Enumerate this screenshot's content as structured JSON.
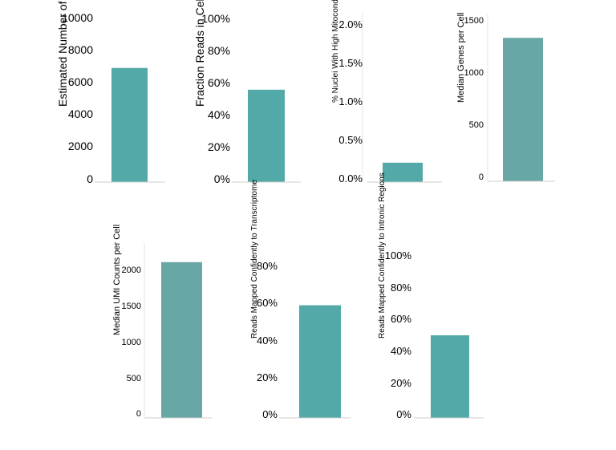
{
  "colors": {
    "bar_teal": "#52a9a7",
    "bar_gray_teal": "#68a7a6",
    "axis_line": "#cfcfcf",
    "vline": "#e4e4e4"
  },
  "chart_data": [
    {
      "type": "bar",
      "ylabel": "Estimated Number of Nuclei",
      "ylim": [
        0,
        10000
      ],
      "ticks": [
        0,
        2000,
        4000,
        6000,
        8000,
        10000
      ],
      "tick_labels": [
        "0",
        "2000",
        "4000",
        "6000",
        "8000",
        "10000"
      ],
      "values": [
        6880
      ],
      "color": "#52a9a7"
    },
    {
      "type": "bar",
      "ylabel": "Fraction Reads in Cells",
      "ylim": [
        0,
        1
      ],
      "ticks": [
        0,
        0.2,
        0.4,
        0.6,
        0.8,
        1.0
      ],
      "tick_labels": [
        "0%",
        "20%",
        "40%",
        "60%",
        "80%",
        "100%"
      ],
      "values": [
        0.556
      ],
      "color": "#52a9a7"
    },
    {
      "type": "bar",
      "ylabel": "% Nuclei With High Mitocondrial Reads",
      "ylim": [
        0,
        0.022
      ],
      "ticks": [
        0,
        0.005,
        0.01,
        0.015,
        0.02
      ],
      "tick_labels": [
        "0.0%",
        "0.5%",
        "1.0%",
        "1.5%",
        "2.0%"
      ],
      "values": [
        0.0021
      ],
      "color": "#52a9a7"
    },
    {
      "type": "bar",
      "ylabel": "Median Genes per Cell",
      "ylim": [
        0,
        1500
      ],
      "ticks": [
        0,
        500,
        1000,
        1500
      ],
      "tick_labels": [
        "0",
        "500",
        "1000",
        "1500"
      ],
      "values": [
        1345
      ],
      "color": "#68a7a6"
    },
    {
      "type": "bar",
      "ylabel": "Median UMI Counts per Cell",
      "ylim": [
        0,
        2200
      ],
      "ticks": [
        0,
        500,
        1000,
        1500,
        2000
      ],
      "tick_labels": [
        "0",
        "500",
        "1000",
        "1500",
        "2000"
      ],
      "values": [
        2125
      ],
      "color": "#68a7a6"
    },
    {
      "type": "bar",
      "ylabel": "Reads Mapped Confidently to Transcriptome",
      "ylim": [
        0,
        0.9
      ],
      "ticks": [
        0,
        0.2,
        0.4,
        0.6,
        0.8
      ],
      "tick_labels": [
        "0%",
        "20%",
        "40%",
        "60%",
        "80%"
      ],
      "values": [
        0.59
      ],
      "color": "#52a9a7"
    },
    {
      "type": "bar",
      "ylabel": "Reads Mapped Confidently to Intronic Regions",
      "ylim": [
        0,
        1
      ],
      "ticks": [
        0,
        0.2,
        0.4,
        0.6,
        0.8,
        1.0
      ],
      "tick_labels": [
        "0%",
        "20%",
        "40%",
        "60%",
        "80%",
        "100%"
      ],
      "values": [
        0.5
      ],
      "color": "#52a9a7"
    }
  ]
}
